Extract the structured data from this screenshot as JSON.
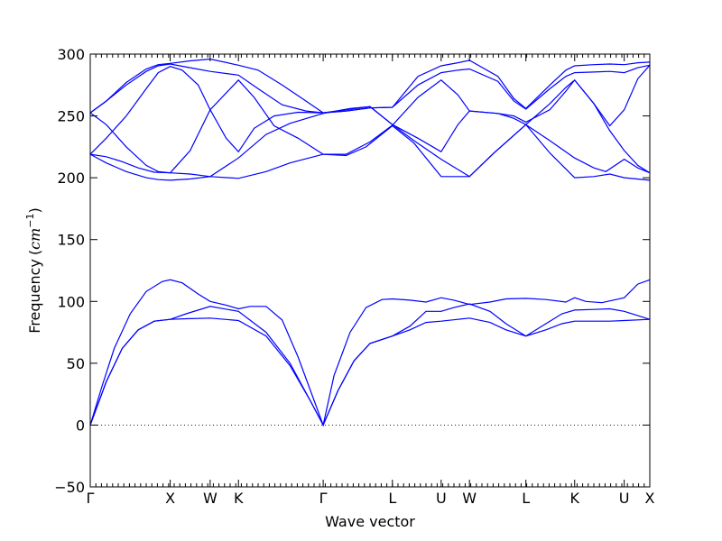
{
  "chart_data": {
    "type": "line",
    "title": "",
    "xlabel": "Wave vector",
    "ylabel": "Frequency",
    "ylabel_unit": "cm",
    "ylabel_unit_exp": "−1",
    "ylim": [
      -50,
      300
    ],
    "yticks": [
      -50,
      0,
      50,
      100,
      150,
      200,
      250,
      300
    ],
    "zero_line": true,
    "grid": false,
    "legend": "none",
    "line_color": "#0000ff",
    "xlim": [
      0,
      7.0
    ],
    "high_symmetry_points": [
      {
        "label": "Γ",
        "x": 0.0
      },
      {
        "label": "X",
        "x": 1.0
      },
      {
        "label": "W",
        "x": 1.5
      },
      {
        "label": "K",
        "x": 1.854
      },
      {
        "label": "Γ",
        "x": 2.914
      },
      {
        "label": "L",
        "x": 3.78
      },
      {
        "label": "U",
        "x": 4.39
      },
      {
        "label": "W",
        "x": 4.744
      },
      {
        "label": "L",
        "x": 5.45
      },
      {
        "label": "K",
        "x": 6.06
      },
      {
        "label": "U",
        "x": 6.68
      },
      {
        "label": "X",
        "x": 7.0
      }
    ],
    "series": [
      {
        "values": [
          [
            0,
            0
          ],
          [
            0.2,
            35
          ],
          [
            0.4,
            62
          ],
          [
            0.6,
            77
          ],
          [
            0.8,
            84
          ],
          [
            1.0,
            85.5
          ],
          [
            1.2,
            86
          ],
          [
            1.5,
            86.5
          ],
          [
            1.854,
            84.5
          ],
          [
            2.2,
            72
          ],
          [
            2.5,
            48
          ],
          [
            2.75,
            20
          ],
          [
            2.914,
            0
          ],
          [
            3.1,
            28
          ],
          [
            3.3,
            52
          ],
          [
            3.5,
            66
          ],
          [
            3.78,
            72
          ],
          [
            4.0,
            77
          ],
          [
            4.2,
            83
          ],
          [
            4.39,
            84
          ],
          [
            4.6,
            85.5
          ],
          [
            4.744,
            86.5
          ],
          [
            5.0,
            83
          ],
          [
            5.2,
            77
          ],
          [
            5.45,
            72
          ],
          [
            5.7,
            77
          ],
          [
            5.9,
            82
          ],
          [
            6.06,
            84
          ],
          [
            6.3,
            84
          ],
          [
            6.5,
            84
          ],
          [
            6.68,
            84.5
          ],
          [
            7.0,
            85.5
          ]
        ]
      },
      {
        "values": [
          [
            0,
            0
          ],
          [
            0.2,
            35
          ],
          [
            0.4,
            62
          ],
          [
            0.6,
            77
          ],
          [
            0.8,
            84
          ],
          [
            1.0,
            85.5
          ],
          [
            1.2,
            90
          ],
          [
            1.5,
            96
          ],
          [
            1.854,
            92
          ],
          [
            2.2,
            75
          ],
          [
            2.5,
            50
          ],
          [
            2.75,
            20
          ],
          [
            2.914,
            0
          ],
          [
            3.1,
            28
          ],
          [
            3.3,
            52
          ],
          [
            3.5,
            66
          ],
          [
            3.78,
            72
          ],
          [
            4.0,
            80
          ],
          [
            4.2,
            92
          ],
          [
            4.39,
            92
          ],
          [
            4.55,
            95
          ],
          [
            4.744,
            98
          ],
          [
            5.0,
            92
          ],
          [
            5.2,
            82
          ],
          [
            5.45,
            72
          ],
          [
            5.7,
            82
          ],
          [
            5.9,
            90
          ],
          [
            6.06,
            93
          ],
          [
            6.3,
            93.5
          ],
          [
            6.5,
            94
          ],
          [
            6.68,
            92
          ],
          [
            7.0,
            85.5
          ]
        ]
      },
      {
        "values": [
          [
            0,
            0
          ],
          [
            0.15,
            32
          ],
          [
            0.3,
            62
          ],
          [
            0.5,
            90
          ],
          [
            0.7,
            108
          ],
          [
            0.9,
            116
          ],
          [
            1.0,
            117.5
          ],
          [
            1.15,
            115
          ],
          [
            1.35,
            106
          ],
          [
            1.5,
            100
          ],
          [
            1.7,
            97
          ],
          [
            1.854,
            94
          ],
          [
            2.0,
            96
          ],
          [
            2.2,
            96
          ],
          [
            2.4,
            85
          ],
          [
            2.6,
            55
          ],
          [
            2.8,
            20
          ],
          [
            2.914,
            0
          ],
          [
            3.05,
            40
          ],
          [
            3.25,
            75
          ],
          [
            3.45,
            95
          ],
          [
            3.65,
            101.5
          ],
          [
            3.78,
            102
          ],
          [
            4.0,
            101
          ],
          [
            4.2,
            99.5
          ],
          [
            4.39,
            103
          ],
          [
            4.55,
            101
          ],
          [
            4.744,
            97.5
          ],
          [
            5.0,
            99.5
          ],
          [
            5.2,
            102
          ],
          [
            5.45,
            102.5
          ],
          [
            5.7,
            101.5
          ],
          [
            5.95,
            99.5
          ],
          [
            6.06,
            103
          ],
          [
            6.2,
            100
          ],
          [
            6.4,
            99
          ],
          [
            6.68,
            103
          ],
          [
            6.85,
            114
          ],
          [
            7.0,
            117.5
          ]
        ]
      },
      {
        "values": [
          [
            0,
            219
          ],
          [
            0.2,
            217
          ],
          [
            0.4,
            213
          ],
          [
            0.6,
            208
          ],
          [
            0.8,
            204.5
          ],
          [
            1.0,
            204
          ],
          [
            1.25,
            203
          ],
          [
            1.5,
            201
          ],
          [
            1.854,
            199.5
          ],
          [
            2.2,
            205
          ],
          [
            2.5,
            212
          ],
          [
            2.914,
            219
          ],
          [
            3.2,
            218
          ],
          [
            3.45,
            225
          ],
          [
            3.78,
            242
          ],
          [
            4.05,
            228
          ],
          [
            4.39,
            201
          ],
          [
            4.744,
            201
          ],
          [
            5.05,
            220
          ],
          [
            5.45,
            243
          ],
          [
            5.75,
            220
          ],
          [
            6.06,
            200
          ],
          [
            6.3,
            201
          ],
          [
            6.5,
            203
          ],
          [
            6.68,
            200
          ],
          [
            7.0,
            198
          ]
        ]
      },
      {
        "values": [
          [
            0,
            219
          ],
          [
            0.2,
            212
          ],
          [
            0.45,
            205
          ],
          [
            0.7,
            200
          ],
          [
            0.85,
            198.5
          ],
          [
            1.0,
            198
          ],
          [
            1.25,
            199
          ],
          [
            1.5,
            201
          ],
          [
            1.854,
            216
          ],
          [
            2.2,
            235
          ],
          [
            2.5,
            244
          ],
          [
            2.914,
            252
          ],
          [
            3.25,
            256
          ],
          [
            3.5,
            257.5
          ],
          [
            3.78,
            243
          ],
          [
            4.05,
            230
          ],
          [
            4.39,
            215
          ],
          [
            4.744,
            201
          ],
          [
            5.05,
            220
          ],
          [
            5.45,
            243
          ],
          [
            5.75,
            230
          ],
          [
            6.06,
            216
          ],
          [
            6.3,
            208
          ],
          [
            6.45,
            205
          ],
          [
            6.68,
            215
          ],
          [
            6.85,
            208
          ],
          [
            7.0,
            204
          ]
        ]
      },
      {
        "values": [
          [
            0,
            219
          ],
          [
            0.2,
            232
          ],
          [
            0.45,
            250
          ],
          [
            0.7,
            272
          ],
          [
            0.85,
            285
          ],
          [
            1.0,
            290
          ],
          [
            1.15,
            287
          ],
          [
            1.35,
            275
          ],
          [
            1.5,
            255
          ],
          [
            1.7,
            232
          ],
          [
            1.854,
            221
          ],
          [
            2.05,
            240
          ],
          [
            2.3,
            250
          ],
          [
            2.6,
            253
          ],
          [
            2.914,
            252.5
          ],
          [
            3.2,
            255
          ],
          [
            3.5,
            257.5
          ],
          [
            3.78,
            243
          ],
          [
            4.1,
            232
          ],
          [
            4.39,
            221
          ],
          [
            4.6,
            243
          ],
          [
            4.744,
            254
          ],
          [
            5.1,
            252
          ],
          [
            5.3,
            248
          ],
          [
            5.45,
            243
          ],
          [
            5.75,
            260
          ],
          [
            5.95,
            273
          ],
          [
            6.06,
            279
          ],
          [
            6.3,
            260
          ],
          [
            6.5,
            242
          ],
          [
            6.68,
            255
          ],
          [
            6.85,
            280
          ],
          [
            7.0,
            291
          ]
        ]
      },
      {
        "values": [
          [
            0,
            252.5
          ],
          [
            0.2,
            243
          ],
          [
            0.45,
            225
          ],
          [
            0.7,
            210
          ],
          [
            0.85,
            205
          ],
          [
            1.0,
            204
          ],
          [
            1.25,
            222
          ],
          [
            1.5,
            255
          ],
          [
            1.854,
            279
          ],
          [
            2.05,
            265
          ],
          [
            2.3,
            242
          ],
          [
            2.6,
            232
          ],
          [
            2.914,
            219
          ],
          [
            3.2,
            219
          ],
          [
            3.5,
            229
          ],
          [
            3.78,
            242.5
          ],
          [
            4.1,
            265
          ],
          [
            4.39,
            279
          ],
          [
            4.6,
            267
          ],
          [
            4.744,
            254
          ],
          [
            5.1,
            252
          ],
          [
            5.3,
            250
          ],
          [
            5.45,
            245
          ],
          [
            5.75,
            255
          ],
          [
            5.95,
            270
          ],
          [
            6.06,
            279
          ],
          [
            6.3,
            260
          ],
          [
            6.5,
            238
          ],
          [
            6.68,
            222
          ],
          [
            6.85,
            210
          ],
          [
            7.0,
            204
          ]
        ]
      },
      {
        "values": [
          [
            0,
            252.5
          ],
          [
            0.2,
            262
          ],
          [
            0.45,
            275
          ],
          [
            0.7,
            286
          ],
          [
            0.85,
            290.5
          ],
          [
            1.0,
            292
          ],
          [
            1.25,
            289
          ],
          [
            1.5,
            286
          ],
          [
            1.854,
            283
          ],
          [
            2.1,
            272
          ],
          [
            2.4,
            259
          ],
          [
            2.7,
            254
          ],
          [
            2.914,
            252.5
          ],
          [
            3.2,
            254
          ],
          [
            3.5,
            256.5
          ],
          [
            3.78,
            257
          ],
          [
            4.1,
            275
          ],
          [
            4.39,
            285
          ],
          [
            4.6,
            287
          ],
          [
            4.744,
            288
          ],
          [
            5.1,
            278
          ],
          [
            5.3,
            262
          ],
          [
            5.45,
            255.5
          ],
          [
            5.75,
            272
          ],
          [
            5.95,
            282
          ],
          [
            6.06,
            285
          ],
          [
            6.3,
            285.5
          ],
          [
            6.5,
            286
          ],
          [
            6.68,
            285
          ],
          [
            6.85,
            289
          ],
          [
            7.0,
            291
          ]
        ]
      },
      {
        "values": [
          [
            0,
            252.5
          ],
          [
            0.2,
            262
          ],
          [
            0.45,
            277
          ],
          [
            0.7,
            288
          ],
          [
            0.85,
            291.5
          ],
          [
            1.0,
            292.5
          ],
          [
            1.25,
            294.5
          ],
          [
            1.5,
            296
          ],
          [
            1.854,
            291
          ],
          [
            2.1,
            287
          ],
          [
            2.4,
            275
          ],
          [
            2.7,
            262
          ],
          [
            2.914,
            252.5
          ],
          [
            3.2,
            254
          ],
          [
            3.5,
            256.5
          ],
          [
            3.78,
            257
          ],
          [
            4.1,
            282
          ],
          [
            4.39,
            290.5
          ],
          [
            4.6,
            293
          ],
          [
            4.744,
            295
          ],
          [
            5.1,
            282
          ],
          [
            5.3,
            264
          ],
          [
            5.45,
            256
          ],
          [
            5.75,
            275
          ],
          [
            5.95,
            287
          ],
          [
            6.06,
            290.5
          ],
          [
            6.3,
            291.5
          ],
          [
            6.5,
            292
          ],
          [
            6.68,
            291.5
          ],
          [
            6.85,
            293
          ],
          [
            7.0,
            293.5
          ]
        ]
      }
    ]
  }
}
